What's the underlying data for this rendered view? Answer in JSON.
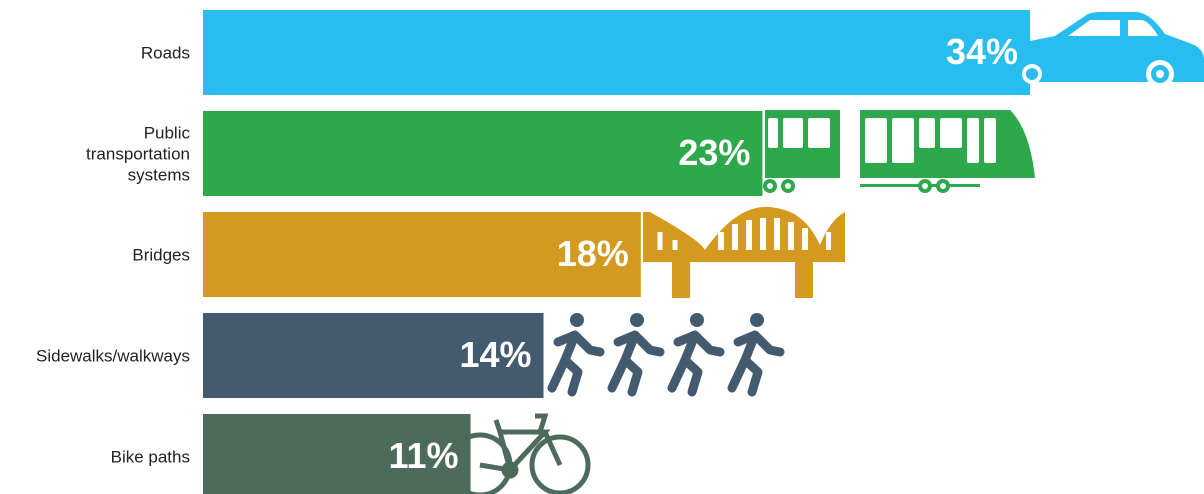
{
  "chart_data": {
    "type": "bar",
    "orientation": "horizontal",
    "categories": [
      "Roads",
      "Public transportation systems",
      "Bridges",
      "Sidewalks/walkways",
      "Bike paths"
    ],
    "values": [
      34,
      23,
      18,
      14,
      11
    ],
    "value_labels": [
      "34%",
      "23%",
      "18%",
      "14%",
      "11%"
    ],
    "colors": [
      "#29bdef",
      "#2da84a",
      "#d4991f",
      "#445a6f",
      "#4d6b5b"
    ],
    "xlim": [
      0,
      34
    ]
  }
}
